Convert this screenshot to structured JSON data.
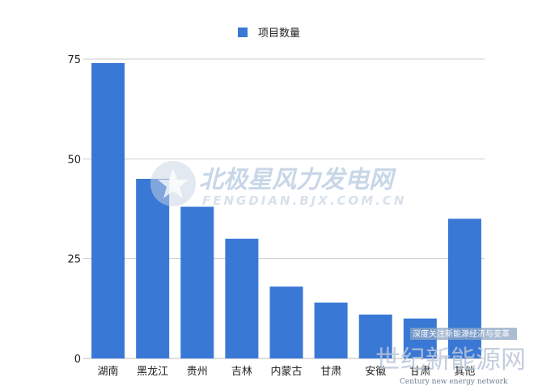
{
  "chart_data": {
    "type": "bar",
    "categories": [
      "湖南",
      "黑龙江",
      "贵州",
      "吉林",
      "内蒙古",
      "甘肃",
      "安徽",
      "甘肃",
      "其他"
    ],
    "series": [
      {
        "name": "项目数量",
        "values": [
          74,
          45,
          38,
          30,
          18,
          14,
          11,
          10,
          35
        ]
      }
    ],
    "ylim": [
      0,
      75
    ],
    "yticks": [
      0,
      25,
      50,
      75
    ],
    "grid": true,
    "legend": "top-center",
    "color": "#3a78d6"
  },
  "watermarks": {
    "brand": "北极星风力发电网",
    "brand_url": "FENGDIAN.BJX.COM.CN",
    "corner_tagline": "深度关注新能源经济与变革",
    "corner_name": "世纪新能源网",
    "corner_en": "Century new energy network"
  }
}
